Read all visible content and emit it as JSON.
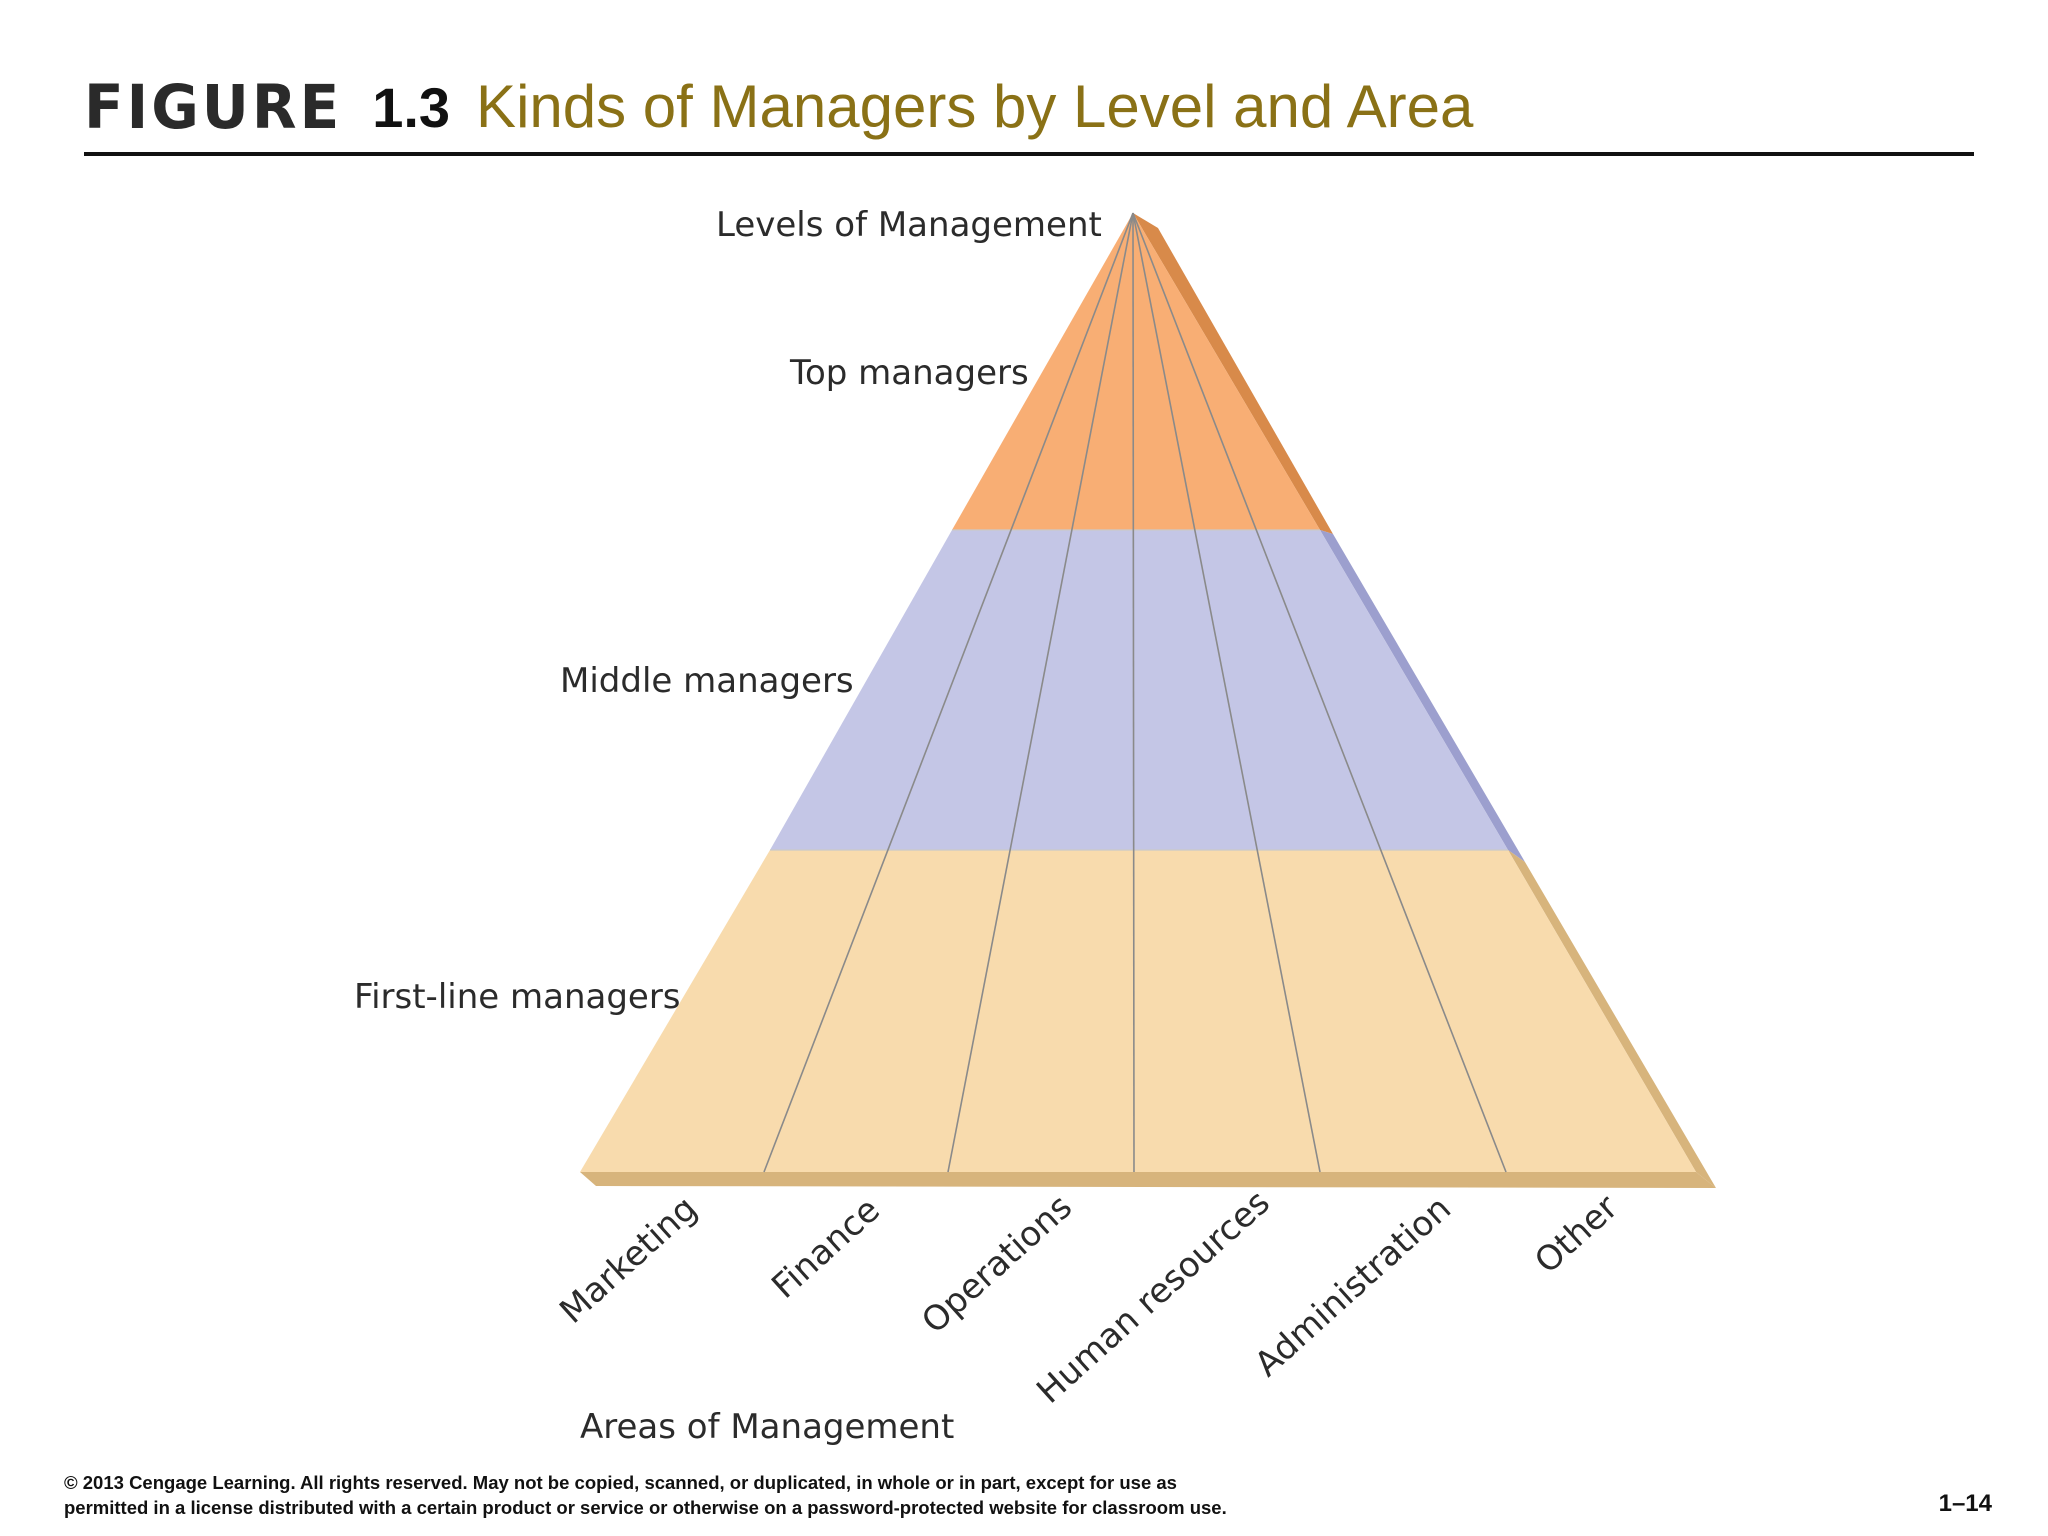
{
  "title": {
    "figure_word": "FIGURE",
    "number": "1.3",
    "text": "Kinds of Managers by Level and Area"
  },
  "diagram": {
    "levels_heading": "Levels of Management",
    "areas_heading": "Areas of Management",
    "levels": [
      {
        "label": "Top managers",
        "color": "#f8ae74"
      },
      {
        "label": "Middle managers",
        "color": "#c4c6e6"
      },
      {
        "label": "First-line managers",
        "color": "#f8dbad"
      }
    ],
    "areas": [
      "Marketing",
      "Finance",
      "Operations",
      "Human resources",
      "Administration",
      "Other"
    ],
    "colors": {
      "edge_top": "#d88a4a",
      "edge_middle": "#9c9fce",
      "edge_bottom": "#d7b47c",
      "divider": "#8a8a8a"
    }
  },
  "footer": {
    "line1": "© 2013 Cengage Learning. All rights reserved. May not be copied, scanned, or duplicated, in whole or in part, except for use as",
    "line2": "permitted in a license distributed with a certain product or service or otherwise on a password-protected website for classroom use.",
    "page": "1–14"
  }
}
